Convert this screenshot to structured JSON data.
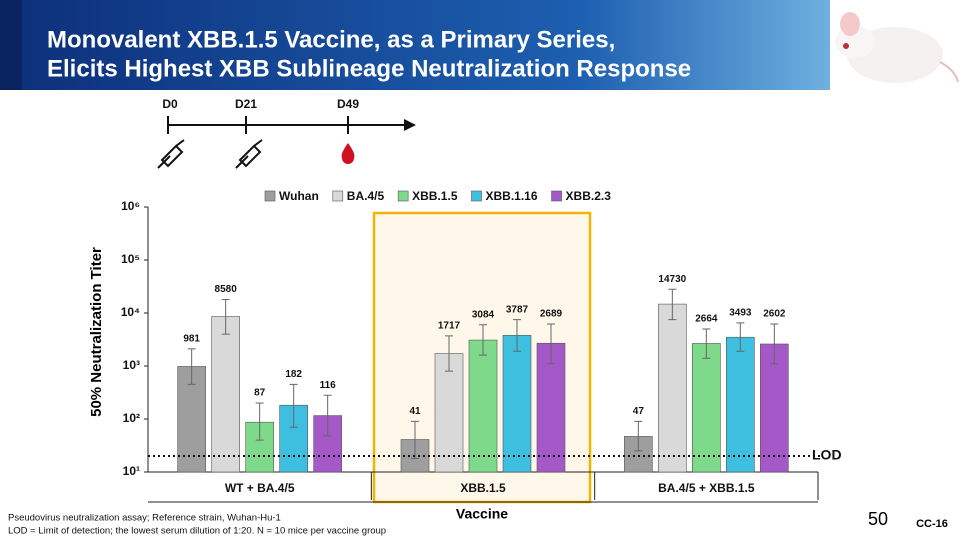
{
  "slide": {
    "title_lines": [
      "Monovalent XBB.1.5 Vaccine, as a Primary Series,",
      "Elicits Highest XBB Sublineage Neutralization Response"
    ],
    "timeline": [
      "D0",
      "D21",
      "D49"
    ],
    "footnotes": [
      "Pseudovirus neutralization assay; Reference strain, Wuhan-Hu-1",
      "LOD = Limit of detection; the lowest serum dilution of 1:20. N = 10 mice per vaccine group"
    ],
    "page_number": "50",
    "code": "CC-16"
  },
  "chart_data": {
    "type": "bar",
    "y_label": "50% Neutralization Titer",
    "x_label": "Vaccine",
    "log_scale": true,
    "categories": [
      "WT + BA.4/5",
      "XBB.1.5",
      "BA.4/5 + XBB.1.5"
    ],
    "ylim": [
      10,
      1000000
    ],
    "yticks": [
      {
        "value": 10,
        "label": "10¹"
      },
      {
        "value": 100,
        "label": "10²"
      },
      {
        "value": 1000,
        "label": "10³"
      },
      {
        "value": 10000,
        "label": "10⁴"
      },
      {
        "value": 100000,
        "label": "10⁵"
      },
      {
        "value": 1000000,
        "label": "10⁶"
      }
    ],
    "lod": {
      "value": 20,
      "label": "LOD"
    },
    "series": [
      {
        "name": "Wuhan",
        "color": "#9e9e9e",
        "values": [
          981,
          41,
          47
        ],
        "error_low": [
          450,
          18,
          25
        ],
        "error_high": [
          2100,
          90,
          90
        ]
      },
      {
        "name": "BA.4/5",
        "color": "#d9d9d9",
        "values": [
          8580,
          1717,
          14730
        ],
        "error_low": [
          4000,
          800,
          7500
        ],
        "error_high": [
          18000,
          3700,
          28000
        ]
      },
      {
        "name": "XBB.1.5",
        "color": "#7fd98a",
        "values": [
          87,
          3084,
          2664
        ],
        "error_low": [
          40,
          1600,
          1400
        ],
        "error_high": [
          200,
          6000,
          5000
        ]
      },
      {
        "name": "XBB.1.16",
        "color": "#3fbfe0",
        "values": [
          182,
          3787,
          3493
        ],
        "error_low": [
          70,
          1900,
          1900
        ],
        "error_high": [
          450,
          7500,
          6500
        ]
      },
      {
        "name": "XBB.2.3",
        "color": "#a558c8",
        "values": [
          116,
          2689,
          2602
        ],
        "error_low": [
          48,
          1100,
          1100
        ],
        "error_high": [
          280,
          6200,
          6200
        ]
      }
    ]
  }
}
